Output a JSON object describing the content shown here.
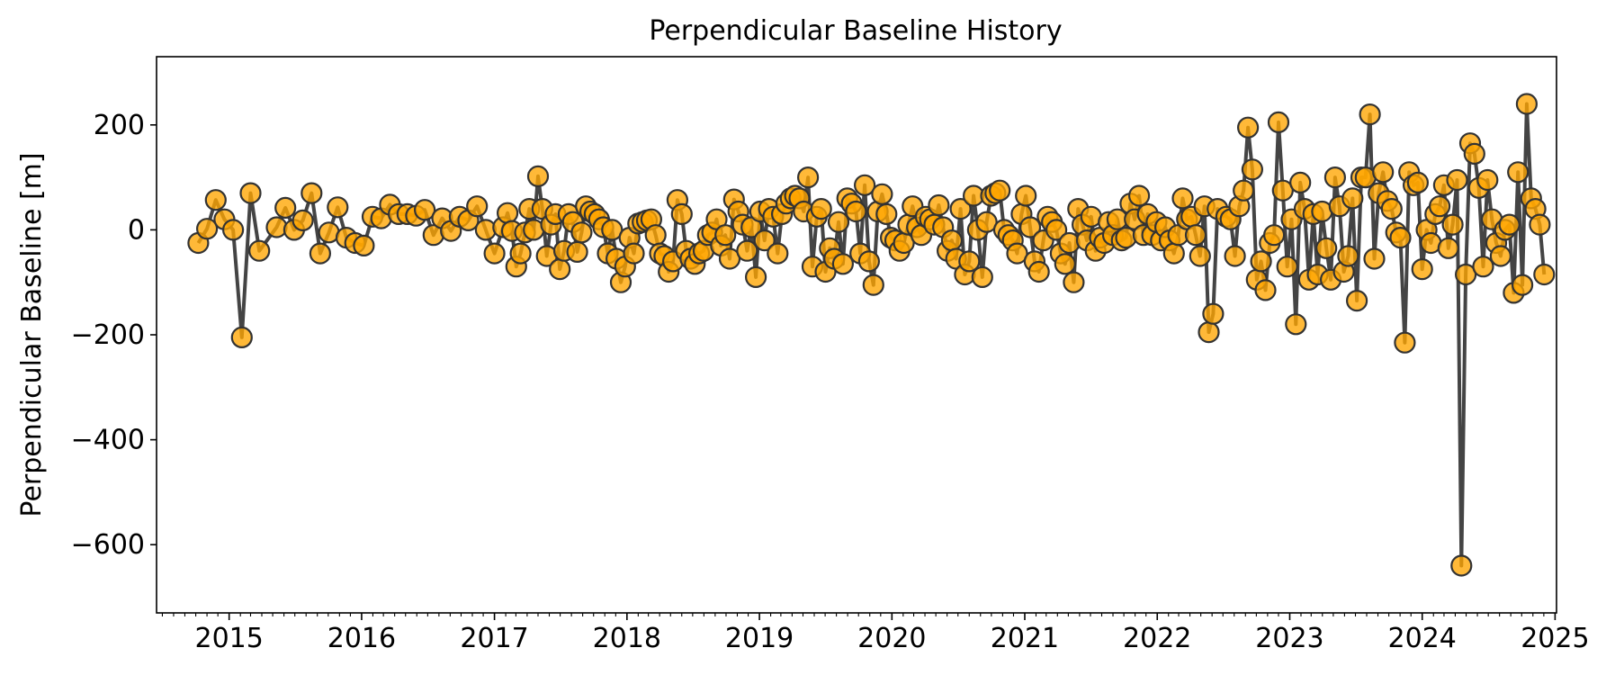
{
  "chart_data": {
    "type": "line",
    "title": "Perpendicular Baseline History",
    "xlabel": "",
    "ylabel": "Perpendicular Baseline [m]",
    "xlim": [
      "2014-06-15",
      "2025-01-05"
    ],
    "ylim": [
      -730,
      330
    ],
    "x_ticks": [
      "2015",
      "2016",
      "2017",
      "2018",
      "2019",
      "2020",
      "2021",
      "2022",
      "2023",
      "2024",
      "2025"
    ],
    "y_ticks": [
      200,
      0,
      -200,
      -400,
      -600
    ],
    "y_tick_labels": [
      "200",
      "0",
      "−200",
      "−400",
      "−600"
    ],
    "grid": false,
    "line_color": "#444444",
    "marker_face_color": "#FFA500",
    "marker_edge_color": "#333333",
    "series": [
      {
        "points": [
          [
            "2014-10-08",
            -25
          ],
          [
            "2014-11-01",
            2
          ],
          [
            "2014-11-25",
            57
          ],
          [
            "2014-12-19",
            20
          ],
          [
            "2015-01-12",
            0
          ],
          [
            "2015-02-05",
            -205
          ],
          [
            "2015-03-01",
            70
          ],
          [
            "2015-03-25",
            -40
          ],
          [
            "2015-05-12",
            5
          ],
          [
            "2015-06-05",
            42
          ],
          [
            "2015-06-29",
            0
          ],
          [
            "2015-07-23",
            18
          ],
          [
            "2015-08-16",
            70
          ],
          [
            "2015-09-09",
            -45
          ],
          [
            "2015-10-03",
            -5
          ],
          [
            "2015-10-27",
            43
          ],
          [
            "2015-11-20",
            -15
          ],
          [
            "2015-12-14",
            -25
          ],
          [
            "2016-01-07",
            -30
          ],
          [
            "2016-01-31",
            25
          ],
          [
            "2016-02-24",
            22
          ],
          [
            "2016-03-19",
            48
          ],
          [
            "2016-04-12",
            30
          ],
          [
            "2016-05-06",
            30
          ],
          [
            "2016-05-30",
            27
          ],
          [
            "2016-06-23",
            38
          ],
          [
            "2016-07-17",
            -10
          ],
          [
            "2016-08-10",
            22
          ],
          [
            "2016-09-03",
            -2
          ],
          [
            "2016-09-27",
            25
          ],
          [
            "2016-10-21",
            18
          ],
          [
            "2016-11-14",
            45
          ],
          [
            "2016-12-08",
            0
          ],
          [
            "2017-01-01",
            -45
          ],
          [
            "2017-01-25",
            5
          ],
          [
            "2017-02-06",
            32
          ],
          [
            "2017-02-18",
            -2
          ],
          [
            "2017-03-02",
            -70
          ],
          [
            "2017-03-14",
            -45
          ],
          [
            "2017-03-26",
            -5
          ],
          [
            "2017-04-07",
            40
          ],
          [
            "2017-04-19",
            0
          ],
          [
            "2017-05-01",
            102
          ],
          [
            "2017-05-13",
            40
          ],
          [
            "2017-05-25",
            -50
          ],
          [
            "2017-06-06",
            10
          ],
          [
            "2017-06-18",
            30
          ],
          [
            "2017-06-30",
            -75
          ],
          [
            "2017-07-12",
            -40
          ],
          [
            "2017-07-24",
            30
          ],
          [
            "2017-08-05",
            15
          ],
          [
            "2017-08-17",
            -42
          ],
          [
            "2017-08-29",
            -5
          ],
          [
            "2017-09-10",
            45
          ],
          [
            "2017-09-22",
            35
          ],
          [
            "2017-10-04",
            30
          ],
          [
            "2017-10-16",
            20
          ],
          [
            "2017-10-28",
            5
          ],
          [
            "2017-11-09",
            -45
          ],
          [
            "2017-11-21",
            0
          ],
          [
            "2017-12-03",
            -55
          ],
          [
            "2017-12-15",
            -100
          ],
          [
            "2017-12-27",
            -70
          ],
          [
            "2018-01-08",
            -15
          ],
          [
            "2018-01-20",
            -45
          ],
          [
            "2018-02-01",
            12
          ],
          [
            "2018-02-13",
            15
          ],
          [
            "2018-02-25",
            18
          ],
          [
            "2018-03-09",
            20
          ],
          [
            "2018-03-21",
            -10
          ],
          [
            "2018-04-02",
            -45
          ],
          [
            "2018-04-14",
            -50
          ],
          [
            "2018-04-26",
            -80
          ],
          [
            "2018-05-08",
            -60
          ],
          [
            "2018-05-20",
            57
          ],
          [
            "2018-06-01",
            30
          ],
          [
            "2018-06-13",
            -40
          ],
          [
            "2018-06-25",
            -55
          ],
          [
            "2018-07-07",
            -65
          ],
          [
            "2018-07-19",
            -45
          ],
          [
            "2018-07-31",
            -40
          ],
          [
            "2018-08-12",
            -10
          ],
          [
            "2018-08-24",
            -5
          ],
          [
            "2018-09-05",
            20
          ],
          [
            "2018-09-17",
            -30
          ],
          [
            "2018-09-29",
            -10
          ],
          [
            "2018-10-11",
            -55
          ],
          [
            "2018-10-23",
            58
          ],
          [
            "2018-11-04",
            35
          ],
          [
            "2018-11-16",
            10
          ],
          [
            "2018-11-28",
            -40
          ],
          [
            "2018-12-10",
            5
          ],
          [
            "2018-12-22",
            -90
          ],
          [
            "2019-01-03",
            35
          ],
          [
            "2019-01-15",
            -20
          ],
          [
            "2019-01-27",
            40
          ],
          [
            "2019-02-08",
            25
          ],
          [
            "2019-02-20",
            -45
          ],
          [
            "2019-03-04",
            30
          ],
          [
            "2019-03-16",
            50
          ],
          [
            "2019-03-28",
            60
          ],
          [
            "2019-04-09",
            65
          ],
          [
            "2019-04-21",
            60
          ],
          [
            "2019-05-03",
            35
          ],
          [
            "2019-05-15",
            100
          ],
          [
            "2019-05-27",
            -70
          ],
          [
            "2019-06-08",
            25
          ],
          [
            "2019-06-20",
            40
          ],
          [
            "2019-07-02",
            -80
          ],
          [
            "2019-07-14",
            -35
          ],
          [
            "2019-07-26",
            -55
          ],
          [
            "2019-08-07",
            15
          ],
          [
            "2019-08-19",
            -65
          ],
          [
            "2019-08-31",
            60
          ],
          [
            "2019-09-12",
            50
          ],
          [
            "2019-09-24",
            35
          ],
          [
            "2019-10-06",
            -45
          ],
          [
            "2019-10-18",
            85
          ],
          [
            "2019-10-30",
            -60
          ],
          [
            "2019-11-11",
            -105
          ],
          [
            "2019-11-23",
            35
          ],
          [
            "2019-12-05",
            68
          ],
          [
            "2019-12-17",
            30
          ],
          [
            "2019-12-29",
            -15
          ],
          [
            "2020-01-10",
            -20
          ],
          [
            "2020-01-22",
            -40
          ],
          [
            "2020-02-03",
            -25
          ],
          [
            "2020-02-15",
            10
          ],
          [
            "2020-02-27",
            45
          ],
          [
            "2020-03-10",
            5
          ],
          [
            "2020-03-22",
            -10
          ],
          [
            "2020-04-03",
            25
          ],
          [
            "2020-04-15",
            20
          ],
          [
            "2020-04-27",
            10
          ],
          [
            "2020-05-09",
            47
          ],
          [
            "2020-05-21",
            5
          ],
          [
            "2020-06-02",
            -40
          ],
          [
            "2020-06-14",
            -20
          ],
          [
            "2020-06-26",
            -55
          ],
          [
            "2020-07-08",
            40
          ],
          [
            "2020-07-20",
            -85
          ],
          [
            "2020-08-01",
            -60
          ],
          [
            "2020-08-13",
            65
          ],
          [
            "2020-08-25",
            0
          ],
          [
            "2020-09-06",
            -90
          ],
          [
            "2020-09-18",
            15
          ],
          [
            "2020-09-30",
            65
          ],
          [
            "2020-10-12",
            70
          ],
          [
            "2020-10-24",
            75
          ],
          [
            "2020-11-05",
            0
          ],
          [
            "2020-11-17",
            -10
          ],
          [
            "2020-11-29",
            -20
          ],
          [
            "2020-12-11",
            -45
          ],
          [
            "2020-12-23",
            30
          ],
          [
            "2021-01-04",
            65
          ],
          [
            "2021-01-16",
            5
          ],
          [
            "2021-01-28",
            -60
          ],
          [
            "2021-02-09",
            -80
          ],
          [
            "2021-02-21",
            -20
          ],
          [
            "2021-03-05",
            25
          ],
          [
            "2021-03-17",
            15
          ],
          [
            "2021-03-29",
            0
          ],
          [
            "2021-04-10",
            -45
          ],
          [
            "2021-04-22",
            -65
          ],
          [
            "2021-05-04",
            -25
          ],
          [
            "2021-05-16",
            -100
          ],
          [
            "2021-05-28",
            40
          ],
          [
            "2021-06-09",
            10
          ],
          [
            "2021-06-21",
            -20
          ],
          [
            "2021-07-03",
            25
          ],
          [
            "2021-07-15",
            -40
          ],
          [
            "2021-07-27",
            -15
          ],
          [
            "2021-08-08",
            -25
          ],
          [
            "2021-08-20",
            15
          ],
          [
            "2021-09-01",
            -10
          ],
          [
            "2021-09-13",
            20
          ],
          [
            "2021-09-25",
            -20
          ],
          [
            "2021-10-07",
            -15
          ],
          [
            "2021-10-19",
            50
          ],
          [
            "2021-10-31",
            20
          ],
          [
            "2021-11-12",
            65
          ],
          [
            "2021-11-24",
            -10
          ],
          [
            "2021-12-06",
            30
          ],
          [
            "2021-12-18",
            -10
          ],
          [
            "2021-12-30",
            15
          ],
          [
            "2022-01-11",
            -20
          ],
          [
            "2022-01-23",
            5
          ],
          [
            "2022-02-04",
            -20
          ],
          [
            "2022-02-16",
            -45
          ],
          [
            "2022-02-28",
            -10
          ],
          [
            "2022-03-12",
            60
          ],
          [
            "2022-03-24",
            20
          ],
          [
            "2022-04-05",
            25
          ],
          [
            "2022-04-17",
            -10
          ],
          [
            "2022-04-29",
            -50
          ],
          [
            "2022-05-11",
            45
          ],
          [
            "2022-05-23",
            -195
          ],
          [
            "2022-06-04",
            -160
          ],
          [
            "2022-06-16",
            40
          ],
          [
            "2022-07-10",
            25
          ],
          [
            "2022-07-22",
            20
          ],
          [
            "2022-08-03",
            -50
          ],
          [
            "2022-08-15",
            45
          ],
          [
            "2022-08-27",
            75
          ],
          [
            "2022-09-08",
            195
          ],
          [
            "2022-09-20",
            115
          ],
          [
            "2022-10-02",
            -95
          ],
          [
            "2022-10-14",
            -60
          ],
          [
            "2022-10-26",
            -115
          ],
          [
            "2022-11-07",
            -25
          ],
          [
            "2022-11-19",
            -10
          ],
          [
            "2022-12-01",
            205
          ],
          [
            "2022-12-13",
            75
          ],
          [
            "2022-12-25",
            -70
          ],
          [
            "2023-01-06",
            20
          ],
          [
            "2023-01-18",
            -180
          ],
          [
            "2023-01-30",
            90
          ],
          [
            "2023-02-11",
            40
          ],
          [
            "2023-02-23",
            -95
          ],
          [
            "2023-03-07",
            30
          ],
          [
            "2023-03-19",
            -85
          ],
          [
            "2023-03-31",
            35
          ],
          [
            "2023-04-12",
            -35
          ],
          [
            "2023-04-24",
            -95
          ],
          [
            "2023-05-06",
            100
          ],
          [
            "2023-05-18",
            45
          ],
          [
            "2023-05-30",
            -80
          ],
          [
            "2023-06-11",
            -50
          ],
          [
            "2023-06-23",
            60
          ],
          [
            "2023-07-05",
            -135
          ],
          [
            "2023-07-17",
            100
          ],
          [
            "2023-07-29",
            100
          ],
          [
            "2023-08-10",
            220
          ],
          [
            "2023-08-22",
            -55
          ],
          [
            "2023-09-03",
            70
          ],
          [
            "2023-09-15",
            110
          ],
          [
            "2023-09-27",
            55
          ],
          [
            "2023-10-09",
            40
          ],
          [
            "2023-10-21",
            -5
          ],
          [
            "2023-11-02",
            -15
          ],
          [
            "2023-11-14",
            -215
          ],
          [
            "2023-11-26",
            110
          ],
          [
            "2023-12-08",
            85
          ],
          [
            "2023-12-20",
            90
          ],
          [
            "2024-01-01",
            -75
          ],
          [
            "2024-01-13",
            0
          ],
          [
            "2024-01-25",
            -25
          ],
          [
            "2024-02-06",
            30
          ],
          [
            "2024-02-18",
            45
          ],
          [
            "2024-03-01",
            85
          ],
          [
            "2024-03-13",
            -35
          ],
          [
            "2024-03-25",
            10
          ],
          [
            "2024-04-06",
            95
          ],
          [
            "2024-04-18",
            -640
          ],
          [
            "2024-04-30",
            -85
          ],
          [
            "2024-05-12",
            165
          ],
          [
            "2024-05-24",
            145
          ],
          [
            "2024-06-05",
            80
          ],
          [
            "2024-06-17",
            -70
          ],
          [
            "2024-06-29",
            95
          ],
          [
            "2024-07-11",
            20
          ],
          [
            "2024-07-23",
            -25
          ],
          [
            "2024-08-04",
            -50
          ],
          [
            "2024-08-16",
            0
          ],
          [
            "2024-08-28",
            10
          ],
          [
            "2024-09-09",
            -120
          ],
          [
            "2024-09-21",
            110
          ],
          [
            "2024-10-03",
            -105
          ],
          [
            "2024-10-15",
            240
          ],
          [
            "2024-10-27",
            60
          ],
          [
            "2024-11-08",
            40
          ],
          [
            "2024-11-20",
            10
          ],
          [
            "2024-12-02",
            -85
          ]
        ]
      }
    ]
  }
}
